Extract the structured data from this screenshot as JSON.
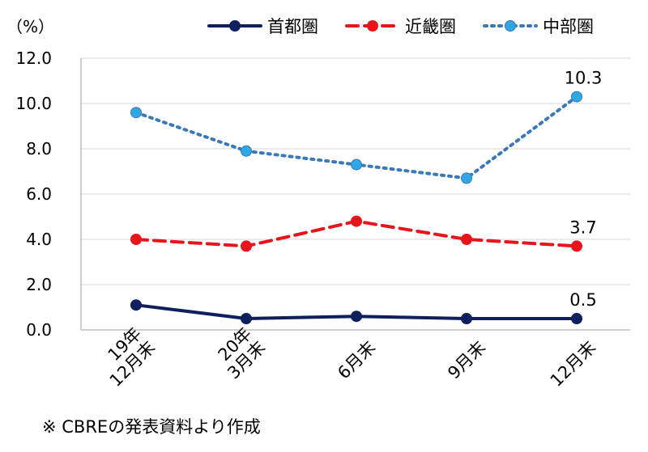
{
  "source_note": "※ CBREの発表資料より作成",
  "chart_data": {
    "type": "line",
    "unit_label": "（%）",
    "categories": [
      [
        "19年",
        "12月末"
      ],
      [
        "20年",
        "3月末"
      ],
      [
        "6月末"
      ],
      [
        "9月末"
      ],
      [
        "12月末"
      ]
    ],
    "ylim": [
      0,
      12
    ],
    "yticks": [
      "0.0",
      "2.0",
      "4.0",
      "6.0",
      "8.0",
      "10.0",
      "12.0"
    ],
    "grid": true,
    "legend_position": "top",
    "series": [
      {
        "name": "首都圏",
        "values": [
          1.1,
          0.5,
          0.6,
          0.5,
          0.5
        ],
        "color": "#0d1f5c",
        "style": "solid",
        "end_label": "0.5"
      },
      {
        "name": "近畿圏",
        "values": [
          4.0,
          3.7,
          4.8,
          4.0,
          3.7
        ],
        "color": "#e8141c",
        "style": "dashed",
        "end_label": "3.7"
      },
      {
        "name": "中部圏",
        "values": [
          9.6,
          7.9,
          7.3,
          6.7,
          10.3
        ],
        "color": "#3a78b8",
        "marker_color": "#2fa7e2",
        "style": "dotted",
        "end_label": "10.3"
      }
    ]
  }
}
